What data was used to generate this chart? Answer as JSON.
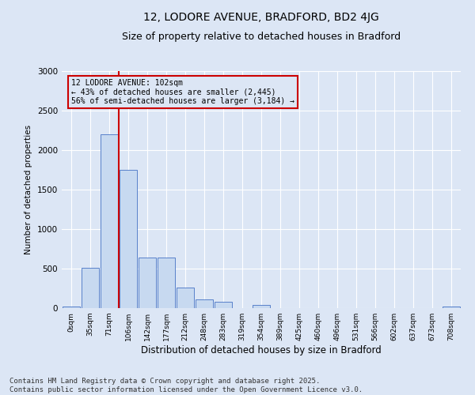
{
  "title_line1": "12, LODORE AVENUE, BRADFORD, BD2 4JG",
  "title_line2": "Size of property relative to detached houses in Bradford",
  "xlabel": "Distribution of detached houses by size in Bradford",
  "ylabel": "Number of detached properties",
  "categories": [
    "0sqm",
    "35sqm",
    "71sqm",
    "106sqm",
    "142sqm",
    "177sqm",
    "212sqm",
    "248sqm",
    "283sqm",
    "319sqm",
    "354sqm",
    "389sqm",
    "425sqm",
    "460sqm",
    "496sqm",
    "531sqm",
    "566sqm",
    "602sqm",
    "637sqm",
    "673sqm",
    "708sqm"
  ],
  "values": [
    20,
    510,
    2200,
    1750,
    640,
    640,
    260,
    110,
    80,
    0,
    40,
    0,
    0,
    0,
    0,
    0,
    0,
    0,
    0,
    0,
    20
  ],
  "bar_color": "#c7d9f0",
  "bar_edge_color": "#4472c4",
  "vline_color": "#cc0000",
  "vline_pos": 2.5,
  "annotation_text": "12 LODORE AVENUE: 102sqm\n← 43% of detached houses are smaller (2,445)\n56% of semi-detached houses are larger (3,184) →",
  "annotation_box_color": "#cc0000",
  "ylim": [
    0,
    3000
  ],
  "yticks": [
    0,
    500,
    1000,
    1500,
    2000,
    2500,
    3000
  ],
  "footer_line1": "Contains HM Land Registry data © Crown copyright and database right 2025.",
  "footer_line2": "Contains public sector information licensed under the Open Government Licence v3.0.",
  "bg_color": "#dce6f5",
  "grid_color": "#ffffff",
  "title_fontsize": 10,
  "subtitle_fontsize": 9,
  "footer_fontsize": 6.5
}
